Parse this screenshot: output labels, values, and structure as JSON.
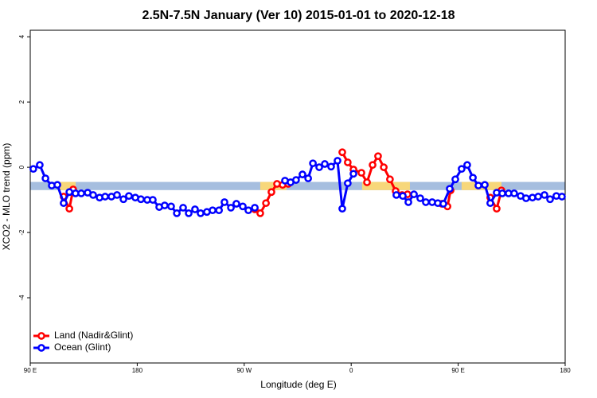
{
  "chart_data": {
    "type": "line",
    "title": "2.5N-7.5N January (Ver 10)   2015-01-01 to 2020-12-18",
    "x_label": "Longitude (deg E)",
    "y_label": "XCO2 - MLO trend (ppm)",
    "xlim": [
      90,
      540
    ],
    "ylim": [
      -6,
      4.2
    ],
    "xticks": [
      {
        "value": 90,
        "label": "90 E"
      },
      180,
      {
        "value": 270,
        "label": "90 W"
      },
      {
        "value": 360,
        "label": "0"
      },
      {
        "value": 450,
        "label": "90 E"
      },
      {
        "value": 540,
        "label": "180"
      }
    ],
    "yticks": [
      -4,
      -2,
      0,
      2,
      4
    ],
    "legend": "bottom-left",
    "reference_band": {
      "ylim": [
        -0.7,
        -0.45
      ],
      "color": "#a6bedf",
      "land_color": "#f7d77a",
      "land_ranges": [
        [
          114.8,
          128.2
        ],
        [
          283.5,
          305.6
        ],
        [
          369.2,
          409.4
        ],
        [
          452.9,
          486.4
        ]
      ]
    },
    "series": [
      {
        "name": "Land (Nadir&Glint)",
        "color": "#ff0000",
        "x": [
          118.1,
          122.9,
          126.1,
          null,
          278.9,
          283.5,
          288.3,
          292.9,
          297.6,
          302.3,
          307.0,
          null,
          352.5,
          357.1,
          361.9,
          368.6,
          373.3,
          378.0,
          382.6,
          387.4,
          392.6,
          397.4,
          402.8,
          407.4,
          null,
          436.3,
          441.0,
          443.6,
          null,
          477.0,
          482.4,
          486.4
        ],
        "values": [
          -0.9,
          -1.27,
          -0.68,
          null,
          -1.29,
          -1.41,
          -1.1,
          -0.76,
          -0.51,
          -0.54,
          -0.51,
          null,
          0.46,
          0.15,
          -0.07,
          -0.17,
          -0.46,
          0.07,
          0.34,
          0.0,
          -0.37,
          -0.73,
          -0.85,
          -0.83,
          null,
          -1.12,
          -1.2,
          -0.71,
          null,
          -0.93,
          -1.27,
          -0.71
        ]
      },
      {
        "name": "Ocean (Glint)",
        "color": "#0000ff",
        "x": [
          92.6,
          98.0,
          102.8,
          108.1,
          112.8,
          118.1,
          122.9,
          128.1,
          132.9,
          138.3,
          142.9,
          148.3,
          153.0,
          158.3,
          163.0,
          168.4,
          173.0,
          178.4,
          183.1,
          188.4,
          193.1,
          198.5,
          203.1,
          208.5,
          213.3,
          218.6,
          223.3,
          228.6,
          233.3,
          238.6,
          243.4,
          248.8,
          253.4,
          258.8,
          263.4,
          268.8,
          273.5,
          278.9,
          null,
          304.3,
          309.0,
          313.6,
          319.0,
          323.8,
          327.8,
          333.1,
          337.8,
          343.1,
          348.5,
          352.5,
          357.1,
          361.9,
          null,
          398.0,
          403.4,
          408.1,
          412.8,
          418.1,
          422.8,
          428.1,
          432.9,
          437.5,
          442.9,
          447.6,
          452.9,
          457.6,
          462.4,
          467.0,
          472.4,
          477.0,
          482.4,
          487.1,
          492.4,
          497.1,
          502.5,
          507.1,
          512.5,
          517.3,
          522.6,
          527.3,
          532.6,
          537.3
        ],
        "values": [
          -0.05,
          0.07,
          -0.34,
          -0.56,
          -0.54,
          -1.1,
          -0.76,
          -0.8,
          -0.8,
          -0.78,
          -0.85,
          -0.93,
          -0.9,
          -0.9,
          -0.85,
          -0.98,
          -0.88,
          -0.93,
          -0.98,
          -1.0,
          -1.0,
          -1.22,
          -1.17,
          -1.2,
          -1.41,
          -1.24,
          -1.41,
          -1.29,
          -1.41,
          -1.37,
          -1.32,
          -1.32,
          -1.07,
          -1.24,
          -1.12,
          -1.2,
          -1.32,
          -1.24,
          null,
          -0.41,
          -0.46,
          -0.39,
          -0.22,
          -0.34,
          0.12,
          0.0,
          0.1,
          0.02,
          0.2,
          -1.27,
          -0.49,
          -0.2,
          null,
          -0.85,
          -0.88,
          -1.07,
          -0.83,
          -0.95,
          -1.07,
          -1.07,
          -1.1,
          -1.12,
          -0.66,
          -0.37,
          -0.05,
          0.07,
          -0.32,
          -0.56,
          -0.54,
          -1.1,
          -0.78,
          -0.8,
          -0.8,
          -0.8,
          -0.88,
          -0.95,
          -0.93,
          -0.9,
          -0.85,
          -0.98,
          -0.88,
          -0.9
        ]
      }
    ]
  }
}
